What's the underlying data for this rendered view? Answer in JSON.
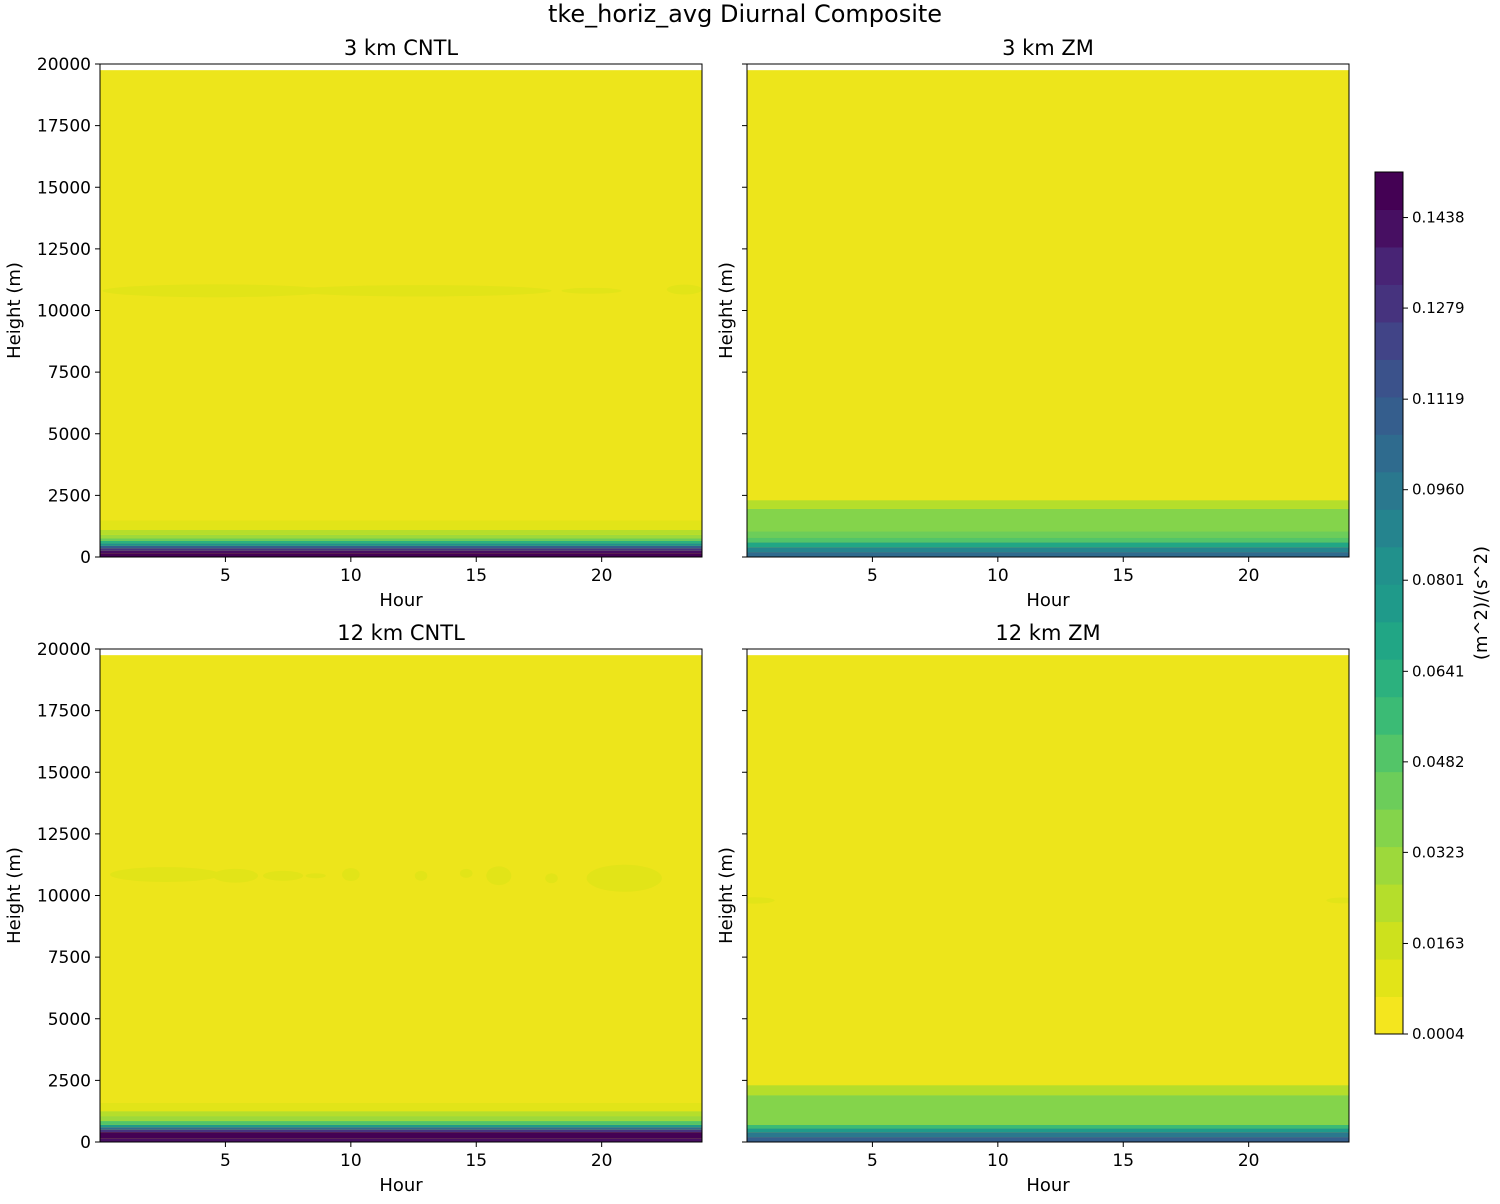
{
  "figure": {
    "title": "tke_horiz_avg Diurnal Composite"
  },
  "colors": {
    "levels": [
      "#f4e61e",
      "#e2e418",
      "#cde11d",
      "#b5de2b",
      "#9dd93b",
      "#84d44b",
      "#6ccd5a",
      "#53c568",
      "#3bbb75",
      "#2cb17e",
      "#21a685",
      "#1f9a8a",
      "#21918c",
      "#25848e",
      "#2a788e",
      "#2f6b8e",
      "#355e8d",
      "#3b528b",
      "#414487",
      "#46337e",
      "#482475",
      "#470f62",
      "#440154"
    ],
    "base": "#ede51b",
    "light": "#cde11d",
    "green": "#84d44b"
  },
  "colorbar": {
    "label": "(m^2)/(s^2)",
    "min": 0.0004,
    "max": 0.1518,
    "ticks": [
      "0.0004",
      "0.0163",
      "0.0323",
      "0.0482",
      "0.0641",
      "0.0801",
      "0.0960",
      "0.1119",
      "0.1279",
      "0.1438"
    ]
  },
  "chart_data": [
    {
      "type": "heatmap",
      "title": "3 km CNTL",
      "xlabel": "Hour",
      "ylabel": "Height (m)",
      "xlim": [
        0,
        24
      ],
      "ylim": [
        0,
        20000
      ],
      "xticks": [
        "5",
        "10",
        "15",
        "20"
      ],
      "yticks": [
        "0",
        "2500",
        "5000",
        "7500",
        "10000",
        "12500",
        "15000",
        "17500",
        "20000"
      ],
      "data_top": 19750,
      "bands": [
        {
          "y0": 0,
          "y1": 150,
          "level": 22
        },
        {
          "y0": 150,
          "y1": 250,
          "level": 21
        },
        {
          "y0": 250,
          "y1": 350,
          "level": 19
        },
        {
          "y0": 350,
          "y1": 450,
          "level": 16
        },
        {
          "y0": 450,
          "y1": 550,
          "level": 12
        },
        {
          "y0": 550,
          "y1": 650,
          "level": 9
        },
        {
          "y0": 650,
          "y1": 750,
          "level": 6
        },
        {
          "y0": 750,
          "y1": 900,
          "level": 4
        },
        {
          "y0": 900,
          "y1": 1100,
          "level": 3
        },
        {
          "y0": 1100,
          "y1": 1480,
          "level": 1
        }
      ],
      "blobs": [
        {
          "x": 4.6,
          "y": 10800,
          "rx": 4.5,
          "ry": 260,
          "level": 1
        },
        {
          "x": 12.8,
          "y": 10800,
          "rx": 5.2,
          "ry": 230,
          "level": 1
        },
        {
          "x": 19.6,
          "y": 10800,
          "rx": 1.2,
          "ry": 120,
          "level": 1
        },
        {
          "x": 23.3,
          "y": 10850,
          "rx": 0.7,
          "ry": 200,
          "level": 1
        }
      ]
    },
    {
      "type": "heatmap",
      "title": "3 km ZM",
      "xlabel": "Hour",
      "ylabel": "Height (m)",
      "xlim": [
        0,
        24
      ],
      "ylim": [
        0,
        20000
      ],
      "xticks": [
        "5",
        "10",
        "15",
        "20"
      ],
      "yticks": [
        "0",
        "2500",
        "5000",
        "7500",
        "10000",
        "12500",
        "15000",
        "17500",
        "20000"
      ],
      "data_top": 19750,
      "bands": [
        {
          "y0": 0,
          "y1": 200,
          "level": 15
        },
        {
          "y0": 200,
          "y1": 400,
          "level": 13
        },
        {
          "y0": 400,
          "y1": 600,
          "level": 10
        },
        {
          "y0": 600,
          "y1": 800,
          "level": 7
        },
        {
          "y0": 800,
          "y1": 1050,
          "level": 6
        },
        {
          "y0": 1050,
          "y1": 1950,
          "level": 5
        },
        {
          "y0": 1950,
          "y1": 2300,
          "level": 3
        }
      ],
      "blobs": []
    },
    {
      "type": "heatmap",
      "title": "12 km CNTL",
      "xlabel": "Hour",
      "ylabel": "Height (m)",
      "xlim": [
        0,
        24
      ],
      "ylim": [
        0,
        20000
      ],
      "xticks": [
        "5",
        "10",
        "15",
        "20"
      ],
      "yticks": [
        "0",
        "2500",
        "5000",
        "7500",
        "10000",
        "12500",
        "15000",
        "17500",
        "20000"
      ],
      "data_top": 19750,
      "bands": [
        {
          "y0": 0,
          "y1": 150,
          "level": 21
        },
        {
          "y0": 150,
          "y1": 400,
          "level": 22
        },
        {
          "y0": 400,
          "y1": 500,
          "level": 19
        },
        {
          "y0": 500,
          "y1": 600,
          "level": 15
        },
        {
          "y0": 600,
          "y1": 700,
          "level": 11
        },
        {
          "y0": 700,
          "y1": 850,
          "level": 7
        },
        {
          "y0": 850,
          "y1": 1050,
          "level": 4
        },
        {
          "y0": 1050,
          "y1": 1250,
          "level": 3
        },
        {
          "y0": 1250,
          "y1": 1580,
          "level": 1
        }
      ],
      "blobs": [
        {
          "x": 2.6,
          "y": 10850,
          "rx": 2.2,
          "ry": 300,
          "level": 1
        },
        {
          "x": 5.4,
          "y": 10800,
          "rx": 0.9,
          "ry": 280,
          "level": 1
        },
        {
          "x": 7.3,
          "y": 10800,
          "rx": 0.8,
          "ry": 200,
          "level": 1
        },
        {
          "x": 8.6,
          "y": 10800,
          "rx": 0.4,
          "ry": 100,
          "level": 1
        },
        {
          "x": 10.0,
          "y": 10850,
          "rx": 0.35,
          "ry": 260,
          "level": 1
        },
        {
          "x": 12.8,
          "y": 10800,
          "rx": 0.25,
          "ry": 200,
          "level": 1
        },
        {
          "x": 14.6,
          "y": 10900,
          "rx": 0.25,
          "ry": 180,
          "level": 1
        },
        {
          "x": 15.9,
          "y": 10800,
          "rx": 0.5,
          "ry": 380,
          "level": 1
        },
        {
          "x": 18.0,
          "y": 10700,
          "rx": 0.25,
          "ry": 200,
          "level": 1
        },
        {
          "x": 20.9,
          "y": 10700,
          "rx": 1.5,
          "ry": 550,
          "level": 1
        }
      ]
    },
    {
      "type": "heatmap",
      "title": "12 km ZM",
      "xlabel": "Hour",
      "ylabel": "Height (m)",
      "xlim": [
        0,
        24
      ],
      "ylim": [
        0,
        20000
      ],
      "xticks": [
        "5",
        "10",
        "15",
        "20"
      ],
      "yticks": [
        "0",
        "2500",
        "5000",
        "7500",
        "10000",
        "12500",
        "15000",
        "17500",
        "20000"
      ],
      "data_top": 19750,
      "bands": [
        {
          "y0": 0,
          "y1": 200,
          "level": 16
        },
        {
          "y0": 200,
          "y1": 400,
          "level": 14
        },
        {
          "y0": 400,
          "y1": 550,
          "level": 11
        },
        {
          "y0": 550,
          "y1": 700,
          "level": 8
        },
        {
          "y0": 700,
          "y1": 1900,
          "level": 5
        },
        {
          "y0": 1900,
          "y1": 2300,
          "level": 3
        }
      ],
      "blobs": [
        {
          "x": 0.3,
          "y": 9800,
          "rx": 0.8,
          "ry": 130,
          "level": 1
        },
        {
          "x": 23.7,
          "y": 9800,
          "rx": 0.6,
          "ry": 120,
          "level": 1
        }
      ]
    }
  ]
}
